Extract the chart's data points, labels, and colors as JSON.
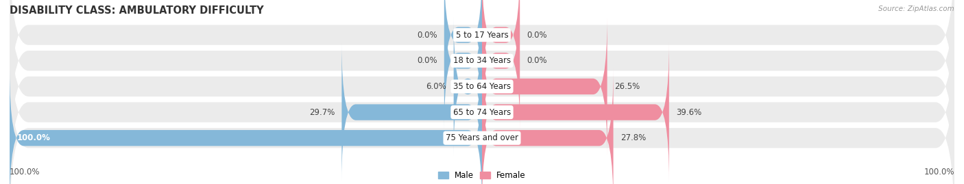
{
  "title": "DISABILITY CLASS: AMBULATORY DIFFICULTY",
  "source": "Source: ZipAtlas.com",
  "categories": [
    "5 to 17 Years",
    "18 to 34 Years",
    "35 to 64 Years",
    "65 to 74 Years",
    "75 Years and over"
  ],
  "male_values": [
    0.0,
    0.0,
    6.0,
    29.7,
    100.0
  ],
  "female_values": [
    0.0,
    0.0,
    26.5,
    39.6,
    27.8
  ],
  "male_color": "#85b8d9",
  "female_color": "#ef8ea0",
  "row_bg_color": "#ebebeb",
  "max_value": 100.0,
  "bar_height": 0.62,
  "legend_male": "Male",
  "legend_female": "Female",
  "axis_label_left": "100.0%",
  "axis_label_right": "100.0%",
  "title_fontsize": 10.5,
  "label_fontsize": 8.5,
  "category_fontsize": 8.5,
  "stub_size": 8.0,
  "figwidth": 14.06,
  "figheight": 2.69
}
